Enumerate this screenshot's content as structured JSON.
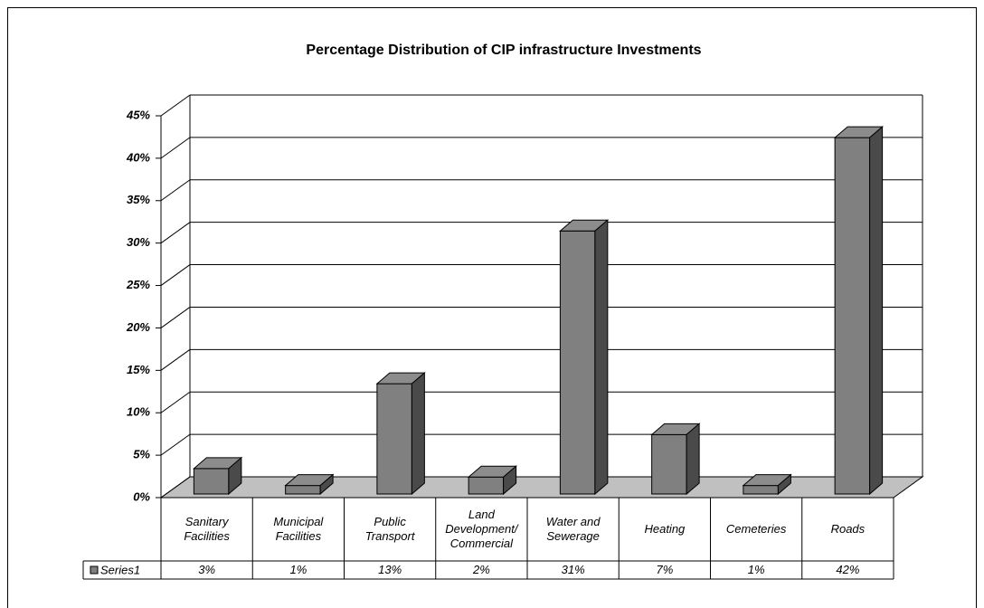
{
  "chart_data": {
    "type": "bar3d",
    "title": "Percentage Distribution of CIP infrastructure Investments",
    "categories": [
      "Sanitary\nFacilities",
      "Municipal\nFacilities",
      "Public\nTransport",
      "Land\nDevelopment/\nCommercial",
      "Water and\nSewerage",
      "Heating",
      "Cemeteries",
      "Roads"
    ],
    "series": [
      {
        "name": "Series1",
        "color": "#808080",
        "values": [
          3,
          1,
          13,
          2,
          31,
          7,
          1,
          42
        ],
        "value_labels": [
          "3%",
          "1%",
          "13%",
          "2%",
          "31%",
          "7%",
          "1%",
          "42%"
        ]
      }
    ],
    "ylim": [
      0,
      45
    ],
    "yticks": [
      {
        "value": 0,
        "label": "0%"
      },
      {
        "value": 5,
        "label": "5%"
      },
      {
        "value": 10,
        "label": "10%"
      },
      {
        "value": 15,
        "label": "15%"
      },
      {
        "value": 20,
        "label": "20%"
      },
      {
        "value": 25,
        "label": "25%"
      },
      {
        "value": 30,
        "label": "30%"
      },
      {
        "value": 35,
        "label": "35%"
      },
      {
        "value": 40,
        "label": "40%"
      },
      {
        "value": 45,
        "label": "45%"
      }
    ],
    "grid": true
  }
}
